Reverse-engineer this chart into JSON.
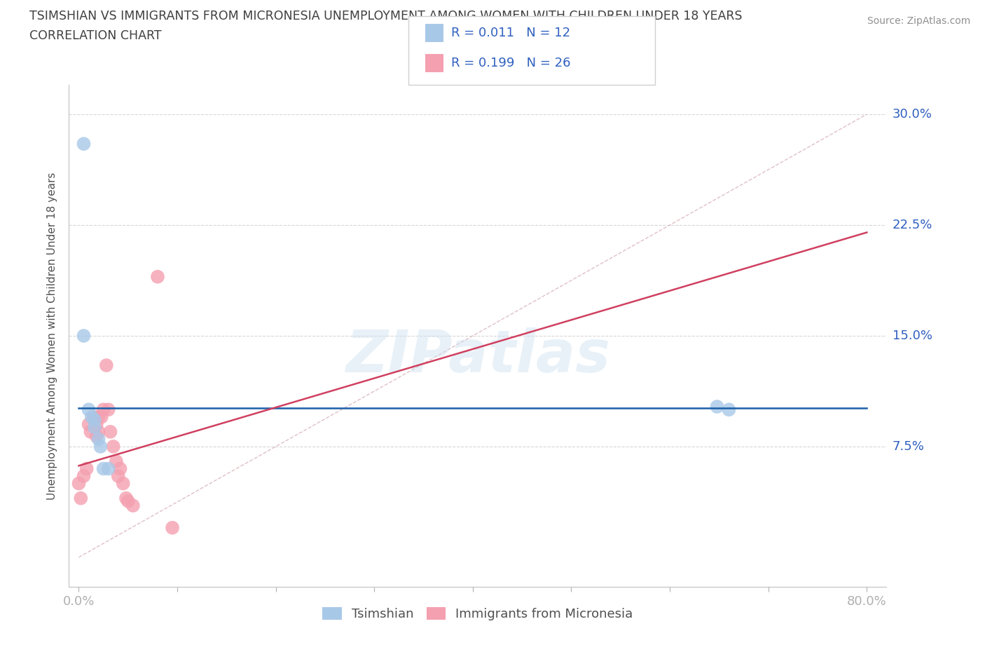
{
  "title_line1": "TSIMSHIAN VS IMMIGRANTS FROM MICRONESIA UNEMPLOYMENT AMONG WOMEN WITH CHILDREN UNDER 18 YEARS",
  "title_line2": "CORRELATION CHART",
  "source_text": "Source: ZipAtlas.com",
  "ylabel": "Unemployment Among Women with Children Under 18 years",
  "xlim": [
    -0.01,
    0.82
  ],
  "ylim": [
    -0.02,
    0.32
  ],
  "xtick_positions": [
    0.0,
    0.1,
    0.2,
    0.3,
    0.4,
    0.5,
    0.6,
    0.7,
    0.8
  ],
  "ytick_positions": [
    0.075,
    0.15,
    0.225,
    0.3
  ],
  "yticklabels": [
    "7.5%",
    "15.0%",
    "22.5%",
    "30.0%"
  ],
  "watermark": "ZIPatlas",
  "color_tsimshian": "#a8c8e8",
  "color_micronesia": "#f4a0b0",
  "color_tsimshian_line": "#1a5fa8",
  "color_micronesia_line": "#d04060",
  "color_diagonal": "#d8b0b8",
  "color_grid": "#d8d8d8",
  "title_color": "#404040",
  "axis_label_color": "#505050",
  "tick_color": "#3060c0",
  "source_color": "#909090",
  "tsimshian_x": [
    0.005,
    0.005,
    0.01,
    0.013,
    0.016,
    0.016,
    0.02,
    0.022,
    0.025,
    0.03,
    0.648,
    0.66
  ],
  "tsimshian_y": [
    0.28,
    0.15,
    0.1,
    0.095,
    0.093,
    0.088,
    0.08,
    0.075,
    0.06,
    0.06,
    0.102,
    0.1
  ],
  "micronesia_x": [
    0.0,
    0.002,
    0.005,
    0.008,
    0.01,
    0.012,
    0.015,
    0.018,
    0.018,
    0.02,
    0.02,
    0.023,
    0.025,
    0.028,
    0.03,
    0.032,
    0.035,
    0.038,
    0.04,
    0.042,
    0.045,
    0.048,
    0.05,
    0.055,
    0.08,
    0.095
  ],
  "micronesia_y": [
    0.05,
    0.04,
    0.055,
    0.06,
    0.09,
    0.085,
    0.095,
    0.09,
    0.082,
    0.095,
    0.085,
    0.095,
    0.1,
    0.13,
    0.1,
    0.085,
    0.075,
    0.065,
    0.055,
    0.06,
    0.05,
    0.04,
    0.038,
    0.035,
    0.19,
    0.02
  ],
  "tsim_line_x": [
    0.0,
    0.8
  ],
  "tsim_line_y": [
    0.101,
    0.101
  ],
  "micro_line_x0": 0.0,
  "micro_line_y0": 0.062,
  "micro_line_x1": 0.8,
  "micro_line_y1": 0.22
}
